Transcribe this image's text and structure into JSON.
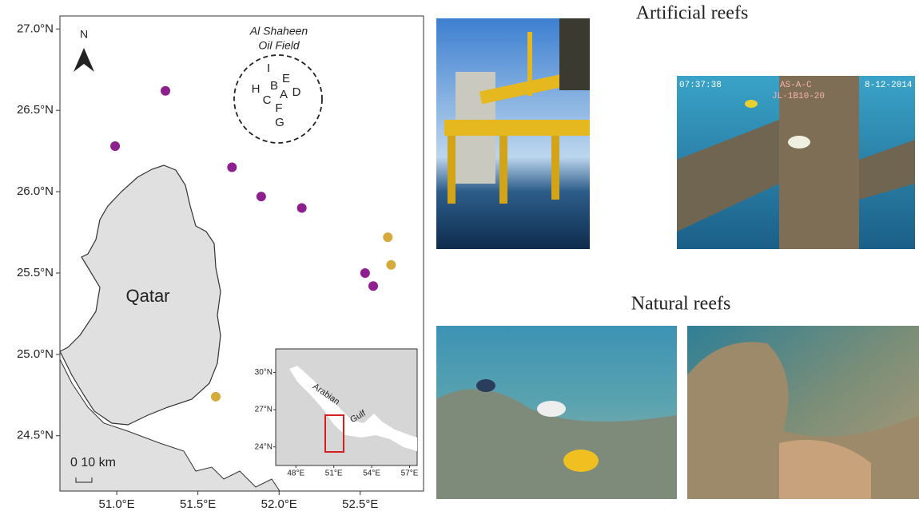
{
  "map": {
    "xlim": [
      50.65,
      52.89
    ],
    "ylim": [
      24.16,
      27.08
    ],
    "xticks": [
      {
        "value": 51.0,
        "label": "51.0°E"
      },
      {
        "value": 51.5,
        "label": "51.5°E"
      },
      {
        "value": 52.0,
        "label": "52.0°E"
      },
      {
        "value": 52.5,
        "label": "52.5°E"
      }
    ],
    "yticks": [
      {
        "value": 24.5,
        "label": "24.5°N"
      },
      {
        "value": 25.0,
        "label": "25.0°N"
      },
      {
        "value": 25.5,
        "label": "25.5°N"
      },
      {
        "value": 26.0,
        "label": "26.0°N"
      },
      {
        "value": 26.5,
        "label": "26.5°N"
      },
      {
        "value": 27.0,
        "label": "27.0°N"
      }
    ],
    "country_label": "Qatar",
    "north_label": "N",
    "scale_label": "0 10 km",
    "oil_field": {
      "title": "Al Shaheen",
      "subtitle": "Oil Field",
      "letters": [
        "I",
        "E",
        "H",
        "B",
        "A",
        "D",
        "C",
        "F",
        "G"
      ]
    },
    "series": [
      {
        "color": "#8e1f8e",
        "lon": [
          51.3,
          50.99,
          51.71,
          51.89,
          52.14,
          52.53,
          52.58
        ],
        "lat": [
          26.62,
          26.28,
          26.15,
          25.97,
          25.9,
          25.5,
          25.42
        ]
      },
      {
        "color": "#d4aa3a",
        "lon": [
          52.67,
          52.69,
          51.61
        ],
        "lat": [
          25.72,
          25.55,
          24.74
        ]
      }
    ],
    "inset": {
      "xlim": [
        46.4,
        57.6
      ],
      "ylim": [
        22.5,
        31.9
      ],
      "xticks": [
        {
          "value": 48,
          "label": "48°E"
        },
        {
          "value": 51,
          "label": "51°E"
        },
        {
          "value": 54,
          "label": "54°E"
        },
        {
          "value": 57,
          "label": "57°E"
        }
      ],
      "yticks": [
        {
          "value": 24,
          "label": "24°N"
        },
        {
          "value": 27,
          "label": "27°N"
        },
        {
          "value": 30,
          "label": "30°N"
        }
      ],
      "labels": [
        "Arabian",
        "Gulf"
      ]
    }
  },
  "photos": {
    "artificial_title": "Artificial reefs",
    "natural_title": "Natural reefs",
    "overlay": [
      "07:37:38",
      "AS-A-C",
      "8-12-2014",
      "JL-1B10-20"
    ]
  }
}
